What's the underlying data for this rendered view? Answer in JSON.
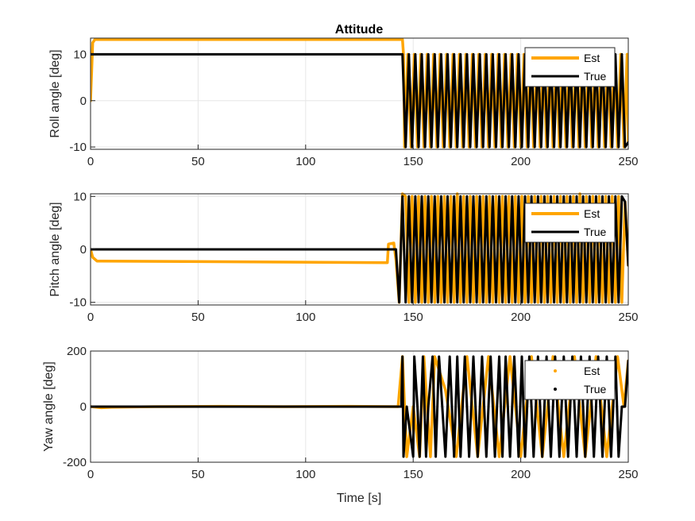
{
  "figure": {
    "title": "Attitude"
  },
  "colors": {
    "est": "#FFA500",
    "true": "#000000",
    "grid": "#e6e6e6",
    "axis": "#262626"
  },
  "chart_data": [
    {
      "type": "line",
      "title": "Attitude",
      "xlabel": "",
      "ylabel": "Roll angle [deg]",
      "xlim": [
        0,
        250
      ],
      "ylim": [
        -10.5,
        13.5
      ],
      "xticks": [
        0,
        50,
        100,
        150,
        200,
        250
      ],
      "yticks": [
        -10,
        0,
        10
      ],
      "grid": true,
      "legend_position": "top-right",
      "series": [
        {
          "name": "Est",
          "style": "line",
          "description_points": {
            "x": [
              0,
              1,
              2,
              145,
              145.5,
              146,
              147.5,
              149,
              150.5,
              152,
              153.5,
              155,
              156.5,
              158,
              159.5,
              161,
              162.5,
              164,
              165.5,
              167,
              168.5,
              170,
              171.5,
              173,
              174.5,
              176,
              177.5,
              179,
              180.5,
              182,
              183.5,
              185,
              186.5,
              188,
              189.5,
              191,
              192.5,
              194,
              195.5,
              197,
              198.5,
              200,
              201.5,
              203,
              204.5,
              206,
              207.5,
              209,
              210.5,
              212,
              213.5,
              215,
              216.5,
              218,
              219.5,
              221,
              222.5,
              224,
              225.5,
              227,
              228.5,
              230,
              231.5,
              233,
              234.5,
              236,
              237.5,
              239,
              240.5,
              242,
              243.5,
              245,
              246.5,
              248,
              249.5,
              250
            ],
            "y": [
              0,
              12.5,
              13.2,
              13.2,
              10,
              -10,
              10,
              -10,
              10,
              -10,
              10,
              -10,
              10,
              -10,
              10,
              -10,
              10,
              -10,
              10,
              -10,
              10,
              -10,
              10,
              -10,
              10,
              -10,
              10,
              -10,
              10,
              -10,
              10,
              -10,
              10,
              -10,
              10,
              -10,
              10,
              -10,
              10,
              -10,
              10,
              -10,
              10,
              -10,
              10,
              -10,
              10,
              -10,
              10,
              -10,
              10,
              -10,
              10,
              -10,
              10,
              -10,
              10,
              -10,
              10,
              -10,
              10,
              -10,
              10,
              -10,
              10,
              -10,
              10,
              -10,
              10,
              -10,
              10,
              -10,
              10,
              -10,
              10,
              -9
            ]
          }
        },
        {
          "name": "True",
          "style": "line",
          "description_points": {
            "x": [
              0,
              144.5,
              145,
              146.5,
              148,
              149.5,
              151,
              152.5,
              154,
              155.5,
              157,
              158.5,
              160,
              161.5,
              163,
              164.5,
              166,
              167.5,
              169,
              170.5,
              172,
              173.5,
              175,
              176.5,
              178,
              179.5,
              181,
              182.5,
              184,
              185.5,
              187,
              188.5,
              190,
              191.5,
              193,
              194.5,
              196,
              197.5,
              199,
              200.5,
              202,
              203.5,
              205,
              206.5,
              208,
              209.5,
              211,
              212.5,
              214,
              215.5,
              217,
              218.5,
              220,
              221.5,
              223,
              224.5,
              226,
              227.5,
              229,
              230.5,
              232,
              233.5,
              235,
              236.5,
              238,
              239.5,
              241,
              242.5,
              244,
              245.5,
              247,
              248.5,
              250
            ],
            "y": [
              10,
              10,
              10,
              -10,
              10,
              -10,
              10,
              -10,
              10,
              -10,
              10,
              -10,
              10,
              -10,
              10,
              -10,
              10,
              -10,
              10,
              -10,
              10,
              -10,
              10,
              -10,
              10,
              -10,
              10,
              -10,
              10,
              -10,
              10,
              -10,
              10,
              -10,
              10,
              -10,
              10,
              -10,
              10,
              -10,
              10,
              -10,
              10,
              -10,
              10,
              -10,
              10,
              -10,
              10,
              -10,
              10,
              -10,
              10,
              -10,
              10,
              -10,
              10,
              -10,
              10,
              -10,
              10,
              -10,
              10,
              -10,
              10,
              -10,
              10,
              -10,
              10,
              -10,
              10,
              -10,
              -9
            ]
          }
        }
      ]
    },
    {
      "type": "line",
      "title": "",
      "xlabel": "",
      "ylabel": "Pitch angle [deg]",
      "xlim": [
        0,
        250
      ],
      "ylim": [
        -10.5,
        10.5
      ],
      "xticks": [
        0,
        50,
        100,
        150,
        200,
        250
      ],
      "yticks": [
        -10,
        0,
        10
      ],
      "grid": true,
      "legend_position": "top-right",
      "series": [
        {
          "name": "Est",
          "style": "line",
          "description_points": {
            "x": [
              0,
              1,
              3,
              138,
              138.5,
              141,
              142,
              143.5,
              145,
              146.5,
              148,
              149.5,
              151,
              152.5,
              154,
              155.5,
              157,
              158.5,
              160,
              161.5,
              163,
              164.5,
              166,
              167.5,
              169,
              170.5,
              172,
              173.5,
              175,
              176.5,
              178,
              179.5,
              181,
              182.5,
              184,
              185.5,
              187,
              188.5,
              190,
              191.5,
              193,
              194.5,
              196,
              197.5,
              199,
              200.5,
              202,
              203.5,
              205,
              206.5,
              208,
              209.5,
              211,
              212.5,
              214,
              215.5,
              217,
              218.5,
              220,
              221.5,
              223,
              224.5,
              226,
              227.5,
              229,
              230.5,
              232,
              233.5,
              235,
              236.5,
              238,
              239.5,
              241,
              242.5,
              244,
              245.5,
              247,
              248.5,
              250
            ],
            "y": [
              0,
              -1.5,
              -2.2,
              -2.5,
              1,
              1.2,
              -2,
              -10,
              10.5,
              10,
              -10,
              10,
              -10,
              10,
              -10,
              10,
              -10,
              10,
              -10,
              10,
              -10,
              10,
              -10,
              10,
              -10,
              10.5,
              -10,
              10,
              -10,
              10,
              -10,
              10,
              -10,
              10,
              -10,
              10,
              -10,
              10,
              -10,
              10,
              -10,
              10,
              -10,
              10,
              -10,
              10,
              -10,
              10,
              -10,
              10,
              -10,
              10,
              -10,
              10,
              -10,
              10,
              -10,
              10,
              -10,
              10,
              -10,
              10,
              -10,
              10.5,
              -10,
              10,
              -10,
              10,
              -10,
              10,
              -10,
              10,
              -10,
              10,
              -10,
              10,
              -10,
              9,
              -3
            ]
          }
        },
        {
          "name": "True",
          "style": "line",
          "description_points": {
            "x": [
              0,
              142,
              143.5,
              145,
              146.5,
              148,
              149.5,
              151,
              152.5,
              154,
              155.5,
              157,
              158.5,
              160,
              161.5,
              163,
              164.5,
              166,
              167.5,
              169,
              170.5,
              172,
              173.5,
              175,
              176.5,
              178,
              179.5,
              181,
              182.5,
              184,
              185.5,
              187,
              188.5,
              190,
              191.5,
              193,
              194.5,
              196,
              197.5,
              199,
              200.5,
              202,
              203.5,
              205,
              206.5,
              208,
              209.5,
              211,
              212.5,
              214,
              215.5,
              217,
              218.5,
              220,
              221.5,
              223,
              224.5,
              226,
              227.5,
              229,
              230.5,
              232,
              233.5,
              235,
              236.5,
              238,
              239.5,
              241,
              242.5,
              244,
              245.5,
              247,
              248.5,
              250
            ],
            "y": [
              0,
              0,
              -10,
              10,
              -10,
              10,
              -10,
              10,
              -10,
              10,
              -10,
              10,
              -10,
              10,
              -10,
              10,
              -10,
              10,
              -10,
              10,
              -10,
              10,
              -10,
              10,
              -10,
              10,
              -10,
              10,
              -10,
              10,
              -10,
              10,
              -10,
              10,
              -10,
              10,
              -10,
              10,
              -10,
              10,
              -10,
              10,
              -10,
              10,
              -10,
              10,
              -10,
              10,
              -10,
              10,
              -10,
              10,
              -10,
              10,
              -10,
              10,
              -10,
              10,
              -10,
              10,
              -10,
              10,
              -10,
              10,
              -10,
              10,
              -10,
              10,
              -10,
              10,
              -10,
              10,
              9,
              -3
            ]
          }
        }
      ]
    },
    {
      "type": "line",
      "title": "",
      "xlabel": "Time [s]",
      "ylabel": "Yaw angle [deg]",
      "xlim": [
        0,
        250
      ],
      "ylim": [
        -200,
        200
      ],
      "xticks": [
        0,
        50,
        100,
        150,
        200,
        250
      ],
      "yticks": [
        -200,
        0,
        200
      ],
      "grid": true,
      "legend_position": "top-right",
      "series": [
        {
          "name": "Est",
          "style": "dots",
          "description_points": {
            "x": [
              0,
              5,
              10,
              30,
              60,
              90,
              120,
              143,
              145,
              147,
              150,
              153,
              155,
              158,
              160,
              165,
              170,
              175,
              180,
              185,
              190,
              195,
              200,
              205,
              210,
              215,
              220,
              225,
              230,
              235,
              240,
              245,
              248,
              250
            ],
            "y": [
              0,
              -4,
              -2,
              0,
              1,
              0,
              1,
              0,
              180,
              -180,
              0,
              -180,
              180,
              -180,
              180,
              60,
              -180,
              180,
              -180,
              180,
              -180,
              180,
              -180,
              180,
              -180,
              180,
              -180,
              180,
              -180,
              180,
              -180,
              180,
              0,
              165
            ]
          }
        },
        {
          "name": "True",
          "style": "dots",
          "description_points": {
            "x": [
              0,
              143,
              144.5,
              145,
              145.5,
              147,
              150,
              150.5,
              152,
              153,
              154.5,
              156,
              157,
              159,
              160.5,
              162,
              163.5,
              165,
              167,
              169,
              170.5,
              172,
              174,
              176,
              178,
              180,
              182,
              184,
              186,
              188,
              190,
              191.5,
              193,
              195,
              197,
              199,
              200.5,
              202,
              204,
              206,
              208,
              210,
              212,
              214,
              216,
              218,
              220,
              222,
              224,
              226,
              228,
              230,
              232,
              234,
              236,
              238,
              240,
              242,
              244,
              245.5,
              247,
              248.5,
              250
            ],
            "y": [
              0,
              0,
              0,
              180,
              -180,
              0,
              -180,
              180,
              0,
              -180,
              180,
              -180,
              0,
              180,
              -180,
              180,
              0,
              -180,
              180,
              -180,
              180,
              -180,
              180,
              -180,
              180,
              -180,
              180,
              -180,
              180,
              -180,
              180,
              -180,
              180,
              -180,
              180,
              -180,
              180,
              -180,
              180,
              -180,
              180,
              -180,
              180,
              -180,
              180,
              -180,
              180,
              -180,
              180,
              -180,
              180,
              -180,
              180,
              -180,
              180,
              -180,
              180,
              -180,
              180,
              -180,
              0,
              0,
              165
            ]
          }
        }
      ]
    }
  ]
}
